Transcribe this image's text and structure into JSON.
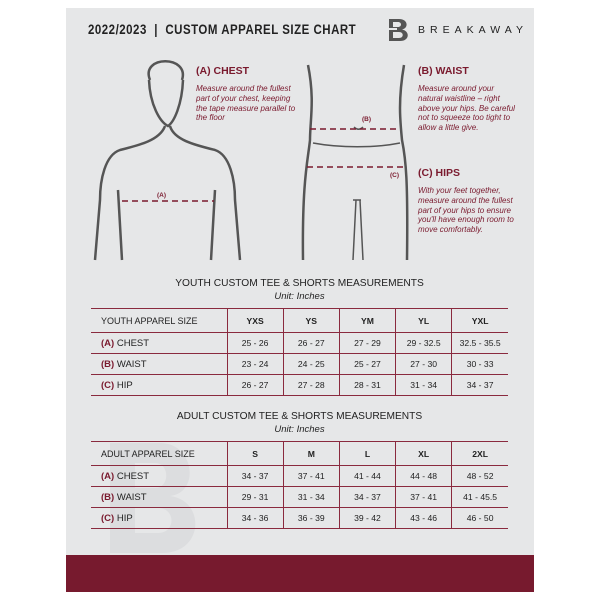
{
  "header": {
    "title": "2022/2023  |  CUSTOM APPAREL SIZE CHART",
    "brand": "BREAKAWAY",
    "logo_letter": "B"
  },
  "measures": {
    "chest": {
      "title": "(A) CHEST",
      "text": "Measure around the fullest part of your chest, keeping the tape measure parallel to the floor",
      "tag": "(A)"
    },
    "waist": {
      "title": "(B) WAIST",
      "text": "Measure around your natural waistline – right above your hips. Be careful not to squeeze too tight to allow a little give.",
      "tag": "(B)"
    },
    "hips": {
      "title": "(C) HIPS",
      "text": "With your feet together, measure around the fullest part of your hips to ensure you'll have enough room to move comfortably.",
      "tag": "(C)"
    }
  },
  "accent": "#7a1a2e",
  "youth": {
    "title": "YOUTH CUSTOM TEE & SHORTS MEASUREMENTS",
    "unit": "Unit: Inches",
    "header": "YOUTH APPAREL SIZE",
    "sizes": [
      "YXS",
      "YS",
      "YM",
      "YL",
      "YXL"
    ],
    "rows": [
      {
        "letter": "(A)",
        "name": "CHEST",
        "values": [
          "25 - 26",
          "26 - 27",
          "27 - 29",
          "29 - 32.5",
          "32.5 - 35.5"
        ]
      },
      {
        "letter": "(B)",
        "name": "WAIST",
        "values": [
          "23 - 24",
          "24 - 25",
          "25 - 27",
          "27 - 30",
          "30 - 33"
        ]
      },
      {
        "letter": "(C)",
        "name": "HIP",
        "values": [
          "26 - 27",
          "27 - 28",
          "28 - 31",
          "31 - 34",
          "34 - 37"
        ]
      }
    ]
  },
  "adult": {
    "title": "ADULT CUSTOM TEE & SHORTS MEASUREMENTS",
    "unit": "Unit: Inches",
    "header": "ADULT APPAREL SIZE",
    "sizes": [
      "S",
      "M",
      "L",
      "XL",
      "2XL"
    ],
    "rows": [
      {
        "letter": "(A)",
        "name": "CHEST",
        "values": [
          "34 - 37",
          "37 - 41",
          "41 - 44",
          "44 - 48",
          "48 - 52"
        ]
      },
      {
        "letter": "(B)",
        "name": "WAIST",
        "values": [
          "29 - 31",
          "31 - 34",
          "34 - 37",
          "37 - 41",
          "41 - 45.5"
        ]
      },
      {
        "letter": "(C)",
        "name": "HIP",
        "values": [
          "34 - 36",
          "36 - 39",
          "39 - 42",
          "43 - 46",
          "46 - 50"
        ]
      }
    ]
  }
}
